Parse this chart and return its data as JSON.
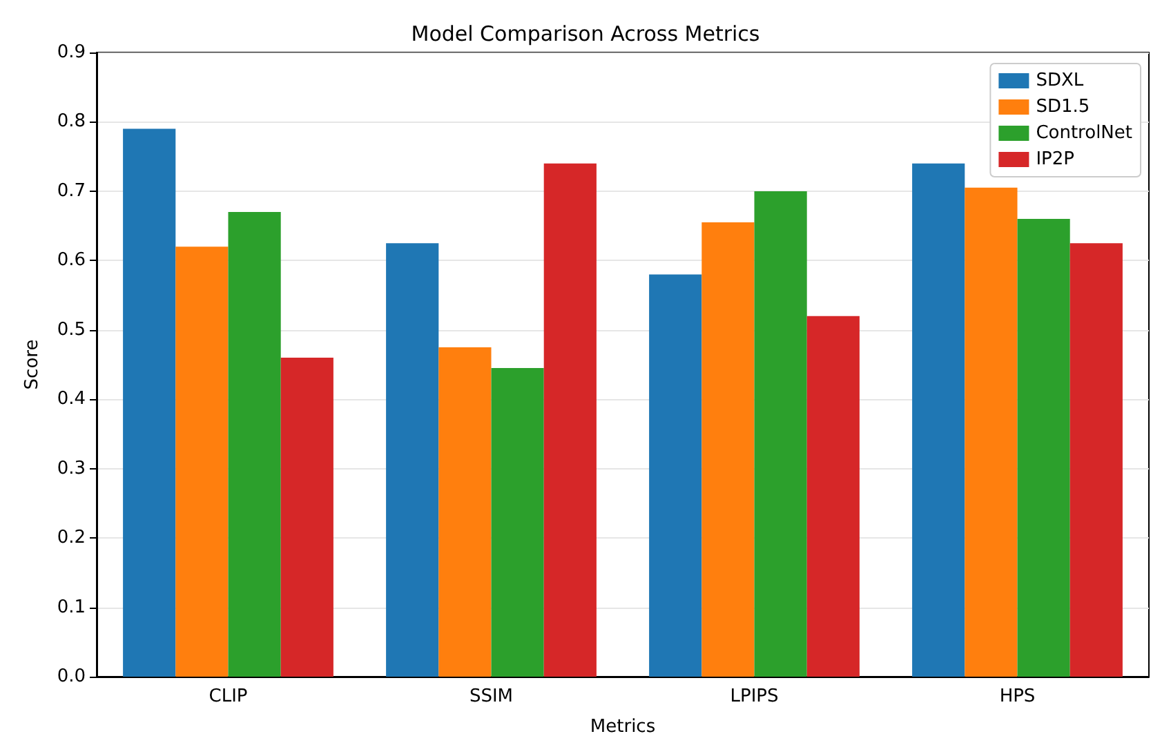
{
  "chart_data": {
    "type": "bar",
    "title": "Model Comparison Across Metrics",
    "xlabel": "Metrics",
    "ylabel": "Score",
    "categories": [
      "CLIP",
      "SSIM",
      "LPIPS",
      "HPS"
    ],
    "series": [
      {
        "name": "SDXL",
        "color": "#1f77b4",
        "values": [
          0.79,
          0.625,
          0.58,
          0.74
        ]
      },
      {
        "name": "SD1.5",
        "color": "#ff7f0e",
        "values": [
          0.62,
          0.475,
          0.655,
          0.705
        ]
      },
      {
        "name": "ControlNet",
        "color": "#2ca02c",
        "values": [
          0.67,
          0.445,
          0.7,
          0.66
        ]
      },
      {
        "name": "IP2P",
        "color": "#d62728",
        "values": [
          0.46,
          0.74,
          0.52,
          0.625
        ]
      }
    ],
    "ylim": [
      0,
      0.9
    ],
    "yticks": [
      {
        "value": 0,
        "label": "0.0"
      },
      {
        "value": 0.1,
        "label": "0.1"
      },
      {
        "value": 0.2,
        "label": "0.2"
      },
      {
        "value": 0.3,
        "label": "0.3"
      },
      {
        "value": 0.4,
        "label": "0.4"
      },
      {
        "value": 0.5,
        "label": "0.5"
      },
      {
        "value": 0.6,
        "label": "0.6"
      },
      {
        "value": 0.7,
        "label": "0.7"
      },
      {
        "value": 0.8,
        "label": "0.8"
      },
      {
        "value": 0.9,
        "label": "0.9"
      }
    ],
    "grid": "y",
    "legend": "top right"
  }
}
